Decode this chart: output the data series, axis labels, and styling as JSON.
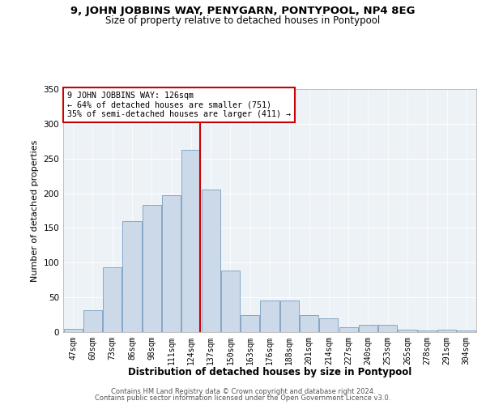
{
  "title": "9, JOHN JOBBINS WAY, PENYGARN, PONTYPOOL, NP4 8EG",
  "subtitle": "Size of property relative to detached houses in Pontypool",
  "xlabel": "Distribution of detached houses by size in Pontypool",
  "ylabel": "Number of detached properties",
  "categories": [
    "47sqm",
    "60sqm",
    "73sqm",
    "86sqm",
    "98sqm",
    "111sqm",
    "124sqm",
    "137sqm",
    "150sqm",
    "163sqm",
    "176sqm",
    "188sqm",
    "201sqm",
    "214sqm",
    "227sqm",
    "240sqm",
    "253sqm",
    "265sqm",
    "278sqm",
    "291sqm",
    "304sqm"
  ],
  "values": [
    5,
    31,
    93,
    160,
    183,
    197,
    263,
    205,
    89,
    24,
    46,
    45,
    24,
    20,
    7,
    10,
    10,
    4,
    2,
    3,
    2
  ],
  "bar_color": "#ccd9e8",
  "bar_edge_color": "#85a8c8",
  "annotation_text": "9 JOHN JOBBINS WAY: 126sqm\n← 64% of detached houses are smaller (751)\n35% of semi-detached houses are larger (411) →",
  "annotation_box_color": "#ffffff",
  "annotation_border_color": "#cc0000",
  "vline_color": "#cc0000",
  "vline_x_index": 6,
  "ylim": [
    0,
    350
  ],
  "yticks": [
    0,
    50,
    100,
    150,
    200,
    250,
    300,
    350
  ],
  "bg_color": "#edf2f7",
  "footer1": "Contains HM Land Registry data © Crown copyright and database right 2024.",
  "footer2": "Contains public sector information licensed under the Open Government Licence v3.0."
}
